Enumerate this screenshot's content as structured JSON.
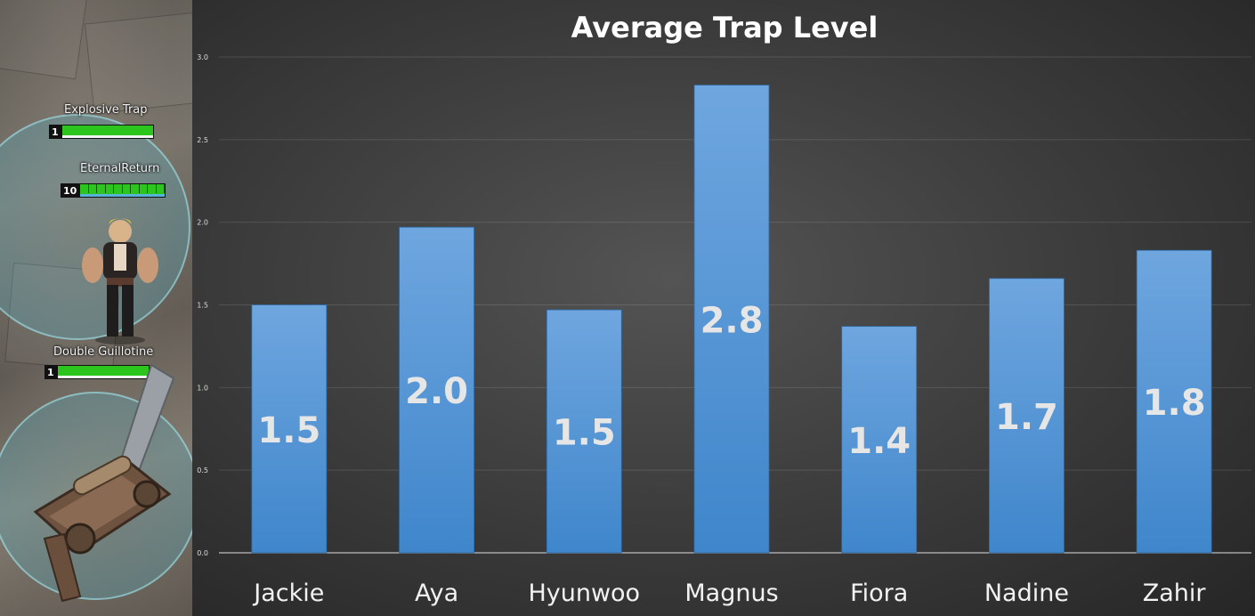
{
  "game_panel": {
    "units": [
      {
        "label": "Explosive Trap",
        "level": "1"
      },
      {
        "label": "EternalReturn",
        "level": "10"
      },
      {
        "label": "Double Guillotine",
        "level": "1"
      }
    ]
  },
  "chart_data": {
    "type": "bar",
    "title": "Average Trap Level",
    "categories": [
      "Jackie",
      "Aya",
      "Hyunwoo",
      "Magnus",
      "Fiora",
      "Nadine",
      "Zahir"
    ],
    "values": [
      1.5,
      1.97,
      1.47,
      2.83,
      1.37,
      1.66,
      1.83
    ],
    "data_labels": [
      "1.5",
      "2.0",
      "1.5",
      "2.8",
      "1.4",
      "1.7",
      "1.8"
    ],
    "ylim": [
      0,
      3
    ],
    "yticks": [
      "0.0",
      "0.5",
      "1.0",
      "1.5",
      "2.0",
      "2.5",
      "3.0"
    ],
    "xlabel": "",
    "ylabel": "",
    "grid": true,
    "legend": "none",
    "bar_color_top": "#6fa6df",
    "bar_color_bottom": "#3f86cb"
  }
}
